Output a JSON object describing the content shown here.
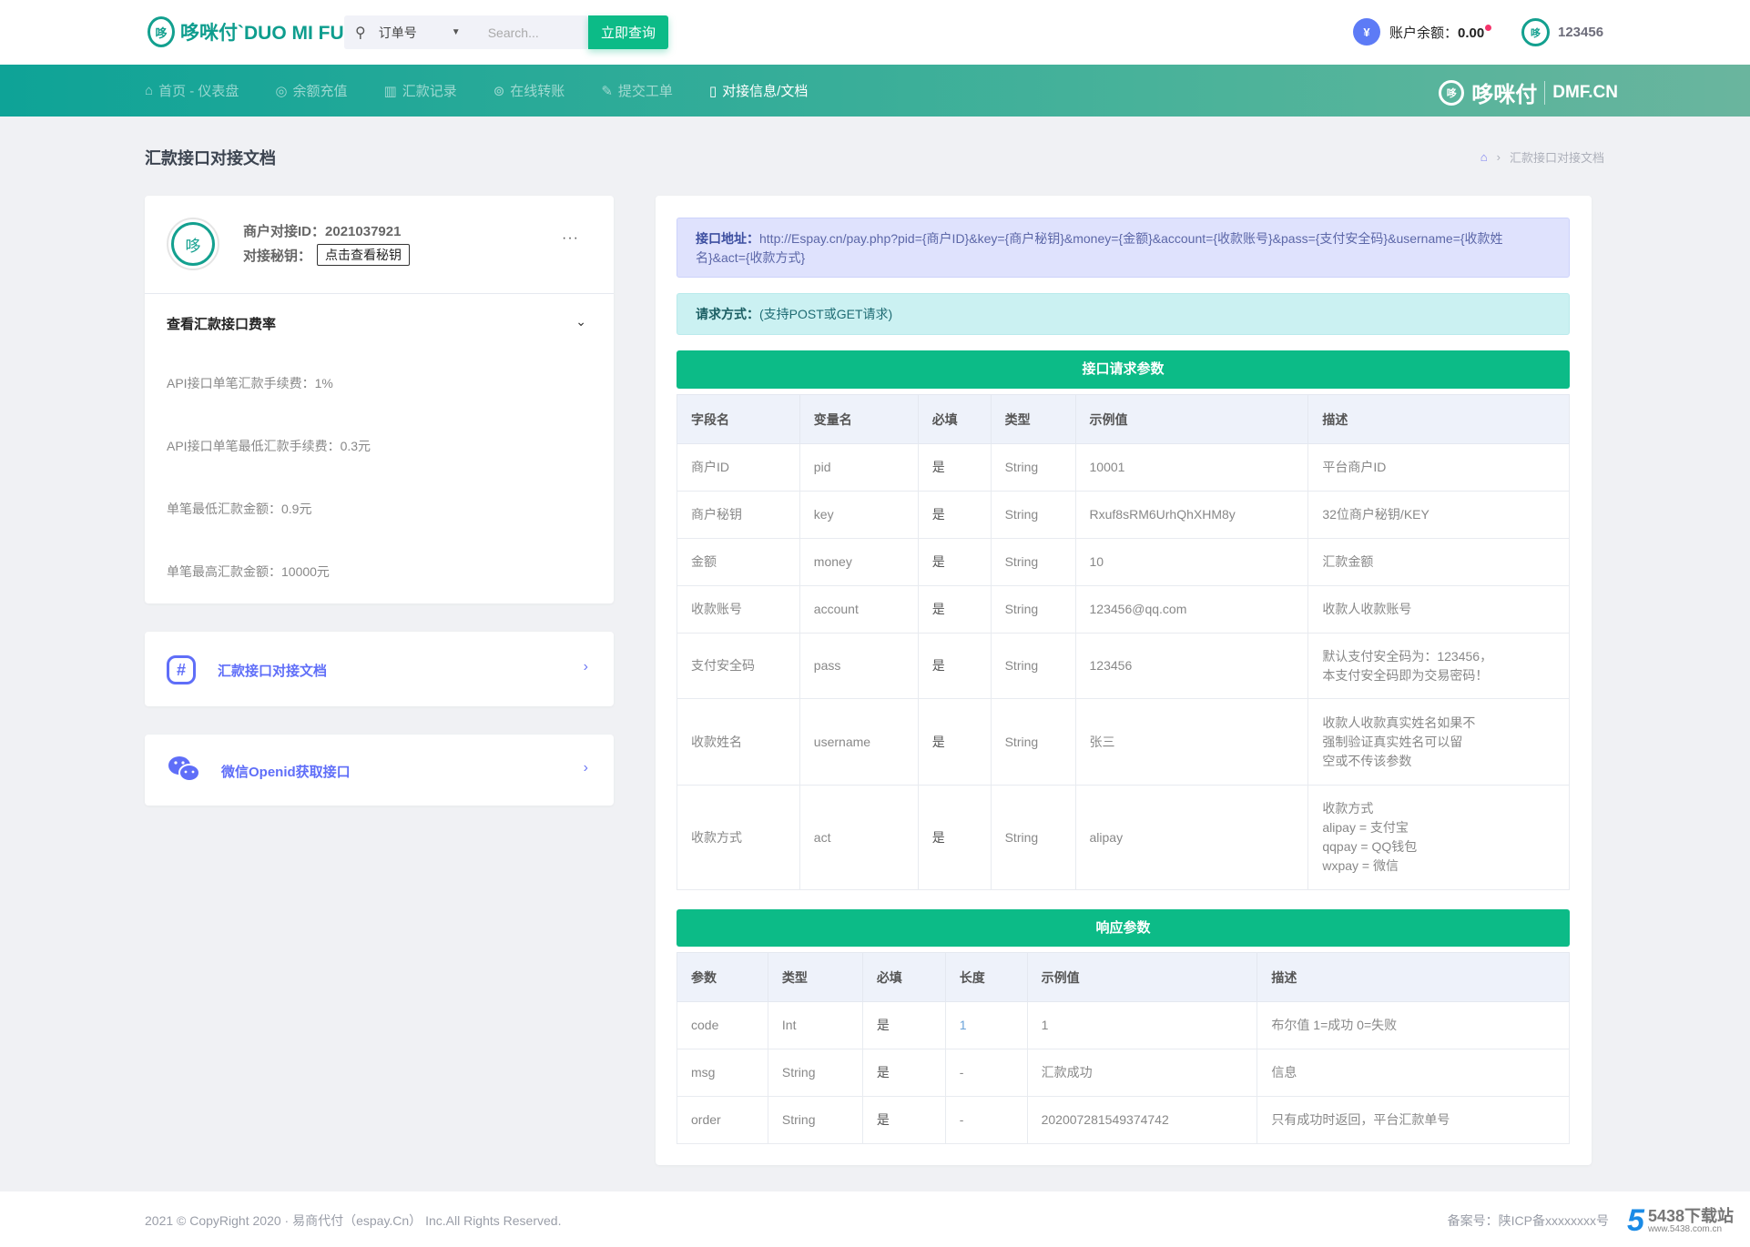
{
  "header": {
    "logo_text": "哆咪付`DUO MI FU",
    "search_type": "订单号",
    "search_placeholder": "Search...",
    "query_button": "立即查询",
    "balance_label": "账户余额：",
    "balance_value": "0.00",
    "username": "123456"
  },
  "nav": {
    "items": [
      {
        "label": "首页 - 仪表盘",
        "icon": "⌂"
      },
      {
        "label": "余额充值",
        "icon": "◎"
      },
      {
        "label": "汇款记录",
        "icon": "▥"
      },
      {
        "label": "在线转账",
        "icon": "⊚"
      },
      {
        "label": "提交工单",
        "icon": "✎"
      },
      {
        "label": "对接信息/文档",
        "icon": "▯"
      }
    ],
    "brand": "哆咪付",
    "brand_domain": "DMF.CN"
  },
  "page": {
    "title": "汇款接口对接文档",
    "breadcrumb": "汇款接口对接文档"
  },
  "merchant": {
    "id_label": "商户对接ID：",
    "id_value": "2021037921",
    "key_label": "对接秘钥：",
    "key_button": "点击查看秘钥",
    "more": "···"
  },
  "rates": {
    "title": "查看汇款接口费率",
    "items": [
      "API接口单笔汇款手续费：1%",
      "API接口单笔最低汇款手续费：0.3元",
      "单笔最低汇款金额：0.9元",
      "单笔最高汇款金额：10000元"
    ]
  },
  "links": [
    {
      "label": "汇款接口对接文档",
      "icon": "#"
    },
    {
      "label": "微信Openid获取接口",
      "icon": "wechat"
    }
  ],
  "doc": {
    "url_label": "接口地址：",
    "url_value": "http://Espay.cn/pay.php?pid={商户ID}&key={商户秘钥}&money={金额}&account={收款账号}&pass={支付安全码}&username={收款姓名}&act={收款方式}",
    "method_label": "请求方式：",
    "method_value": "(支持POST或GET请求)",
    "request_title": "接口请求参数",
    "request_headers": [
      "字段名",
      "变量名",
      "必填",
      "类型",
      "示例值",
      "描述"
    ],
    "request_rows": [
      [
        "商户ID",
        "pid",
        "是",
        "String",
        "10001",
        "平台商户ID"
      ],
      [
        "商户秘钥",
        "key",
        "是",
        "String",
        "Rxuf8sRM6UrhQhXHM8y",
        "32位商户秘钥/KEY"
      ],
      [
        "金额",
        "money",
        "是",
        "String",
        "10",
        "汇款金额"
      ],
      [
        "收款账号",
        "account",
        "是",
        "String",
        "123456@qq.com",
        "收款人收款账号"
      ],
      [
        "支付安全码",
        "pass",
        "是",
        "String",
        "123456",
        "默认支付安全码为：123456，\n本支付安全码即为交易密码！"
      ],
      [
        "收款姓名",
        "username",
        "是",
        "String",
        "张三",
        "收款人收款真实姓名如果不\n强制验证真实姓名可以留\n空或不传该参数"
      ],
      [
        "收款方式",
        "act",
        "是",
        "String",
        "alipay",
        "收款方式\nalipay = 支付宝\nqqpay = QQ钱包\nwxpay = 微信"
      ]
    ],
    "response_title": "响应参数",
    "response_headers": [
      "参数",
      "类型",
      "必填",
      "长度",
      "示例值",
      "描述"
    ],
    "response_rows": [
      [
        "code",
        "Int",
        "是",
        "1",
        "1",
        "布尔值 1=成功 0=失败"
      ],
      [
        "msg",
        "String",
        "是",
        "-",
        "汇款成功",
        "信息"
      ],
      [
        "order",
        "String",
        "是",
        "-",
        "202007281549374742",
        "只有成功时返回，平台汇款单号"
      ]
    ]
  },
  "footer": {
    "copyright": "2021 © CopyRight 2020 · 易商代付（espay.Cn） Inc.All Rights Reserved.",
    "icp": "备案号：陕ICP备xxxxxxxx号",
    "watermark": "5438下载站",
    "watermark_url": "www.5438.com.cn"
  }
}
